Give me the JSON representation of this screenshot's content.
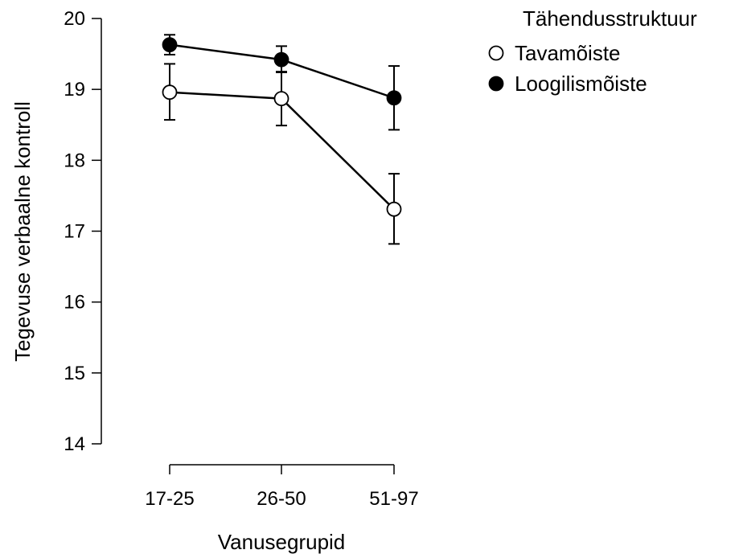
{
  "chart_data": {
    "type": "line",
    "title": "",
    "xlabel": "Vanusegrupid",
    "ylabel": "Tegevuse verbaalne kontroll",
    "categories": [
      "17-25",
      "26-50",
      "51-97"
    ],
    "ylim": [
      14,
      20
    ],
    "yticks": [
      "14",
      "15",
      "16",
      "17",
      "18",
      "19",
      "20"
    ],
    "grid": false,
    "legend": {
      "title": "Tähendusstruktuur",
      "placement": "top-right"
    },
    "series": [
      {
        "name": "Tavamõiste",
        "marker": "open-circle",
        "fill": "#ffffff",
        "values": [
          18.96,
          18.87,
          17.31
        ],
        "error_low": [
          18.57,
          18.49,
          16.82
        ],
        "error_high": [
          19.36,
          19.25,
          17.81
        ]
      },
      {
        "name": "Loogilismõiste",
        "marker": "filled-circle",
        "fill": "#000000",
        "values": [
          19.63,
          19.42,
          18.88
        ],
        "error_low": [
          19.49,
          19.24,
          18.43
        ],
        "error_high": [
          19.77,
          19.61,
          19.33
        ]
      }
    ]
  }
}
